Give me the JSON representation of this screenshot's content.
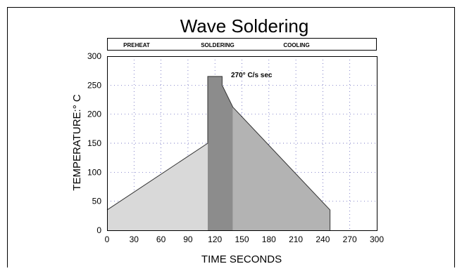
{
  "chart_data": {
    "type": "area",
    "title": "Wave Soldering",
    "phases": [
      "PREHEAT",
      "SOLDERING",
      "COOLING"
    ],
    "xlabel": "TIME SECONDS",
    "ylabel": "TEMPERATURE:° C",
    "xlim": [
      0,
      300
    ],
    "ylim": [
      0,
      300
    ],
    "xticks": [
      0,
      30,
      60,
      90,
      120,
      150,
      180,
      210,
      240,
      270,
      300
    ],
    "yticks": [
      0,
      50,
      100,
      150,
      200,
      250,
      300
    ],
    "grid": true,
    "annotation": "270° C/s sec",
    "regions": [
      {
        "phase": "PREHEAT",
        "color": "#d9d9d9",
        "points": [
          [
            0,
            0
          ],
          [
            0,
            35
          ],
          [
            112,
            150
          ],
          [
            112,
            0
          ]
        ]
      },
      {
        "phase": "SOLDERING",
        "color": "#8c8c8c",
        "points": [
          [
            112,
            0
          ],
          [
            112,
            265
          ],
          [
            128,
            265
          ],
          [
            128,
            250
          ],
          [
            140,
            212
          ],
          [
            140,
            0
          ]
        ]
      },
      {
        "phase": "COOLING",
        "color": "#b3b3b3",
        "points": [
          [
            140,
            0
          ],
          [
            140,
            212
          ],
          [
            248,
            35
          ],
          [
            248,
            0
          ]
        ]
      }
    ],
    "outline": [
      [
        0,
        35
      ],
      [
        112,
        150
      ],
      [
        112,
        265
      ],
      [
        128,
        265
      ],
      [
        128,
        250
      ],
      [
        140,
        212
      ],
      [
        248,
        35
      ],
      [
        248,
        0
      ]
    ]
  }
}
